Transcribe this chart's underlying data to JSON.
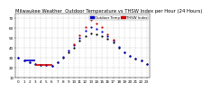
{
  "title": "Milwaukee Weather  Outdoor Temperature vs THSW Index per Hour (24 Hours)",
  "bg_color": "#ffffff",
  "grid_color": "#aaaaaa",
  "hours": [
    0,
    1,
    2,
    3,
    4,
    5,
    6,
    7,
    8,
    9,
    10,
    11,
    12,
    13,
    14,
    15,
    16,
    17,
    18,
    19,
    20,
    21,
    22,
    23
  ],
  "temp_black": [
    30,
    27,
    25,
    24,
    23,
    23,
    22,
    25,
    30,
    35,
    40,
    47,
    52,
    55,
    54,
    52,
    49,
    45,
    40,
    35,
    32,
    29,
    27,
    24
  ],
  "temp_blue": [
    30,
    27,
    25,
    24,
    23,
    23,
    22,
    25,
    31,
    37,
    43,
    50,
    57,
    61,
    59,
    56,
    52,
    47,
    41,
    35,
    32,
    29,
    27,
    24
  ],
  "temp_red": [
    null,
    null,
    null,
    null,
    null,
    null,
    null,
    null,
    null,
    null,
    44,
    53,
    61,
    68,
    65,
    61,
    54,
    48,
    null,
    null,
    null,
    null,
    null,
    null
  ],
  "red_line_x": [
    3,
    6
  ],
  "red_line_y": [
    23,
    23
  ],
  "blue_line_x": [
    1,
    3
  ],
  "blue_line_y": [
    27,
    27
  ],
  "ylim": [
    10,
    75
  ],
  "yticks": [
    10,
    20,
    30,
    40,
    50,
    60,
    70
  ],
  "legend_blue_label": "Outdoor Temp",
  "legend_red_label": "THSW Index",
  "legend_blue_color": "#0000cc",
  "legend_red_color": "#cc0000",
  "dot_size_black": 2.5,
  "dot_size_blue": 2.5,
  "dot_size_red": 2.5,
  "title_fontsize": 3.8,
  "tick_fontsize": 3.0,
  "legend_fontsize": 2.8
}
